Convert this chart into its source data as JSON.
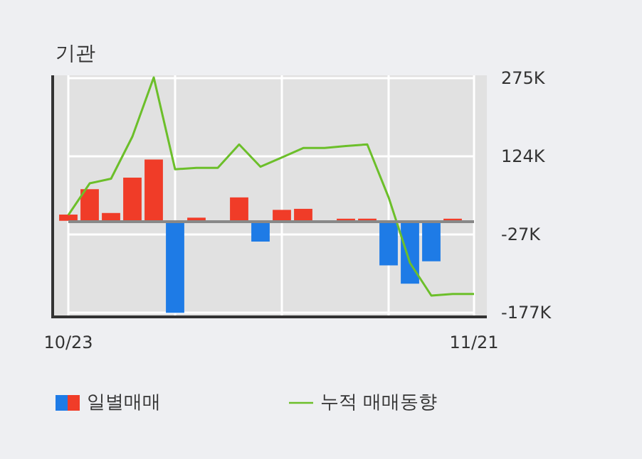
{
  "chart_data": {
    "type": "bar",
    "title": "기관",
    "categories": [
      "10/23",
      null,
      null,
      null,
      null,
      null,
      null,
      null,
      null,
      null,
      null,
      null,
      null,
      null,
      null,
      null,
      null,
      null,
      null,
      "11/21"
    ],
    "series": [
      {
        "name": "일별매매",
        "values": [
          12,
          61,
          15,
          83,
          118,
          -177,
          6,
          null,
          45,
          -40,
          21,
          23,
          null,
          4,
          4,
          -86,
          -121,
          -78,
          4,
          null
        ],
        "colors": [
          "#f03c28",
          "#f03c28",
          "#f03c28",
          "#f03c28",
          "#f03c28",
          "#1e7be6",
          "#f03c28",
          "#f03c28",
          "#f03c28",
          "#1e7be6",
          "#f03c28",
          "#f03c28",
          "#f03c28",
          "#f03c28",
          "#f03c28",
          "#1e7be6",
          "#1e7be6",
          "#1e7be6",
          "#f03c28",
          "#f03c28"
        ]
      },
      {
        "name": "누적 매매동향",
        "type": "line",
        "color": "#6cbf2a",
        "values": [
          11,
          72,
          81,
          162,
          276,
          99,
          102,
          102,
          147,
          104,
          122,
          140,
          140,
          144,
          147,
          45,
          -81,
          -144,
          -141,
          -141
        ]
      }
    ],
    "ylim": [
      -185,
      280
    ],
    "yticks": [
      {
        "value": 275,
        "label": "275K"
      },
      {
        "value": 124,
        "label": "124K"
      },
      {
        "value": -27,
        "label": "-27K"
      },
      {
        "value": -177,
        "label": "-177K"
      }
    ],
    "ref_lines": [
      {
        "axis": "y",
        "value": 0,
        "color": "#888888"
      }
    ],
    "grid": true,
    "legend": "bottom",
    "marker": "none"
  }
}
